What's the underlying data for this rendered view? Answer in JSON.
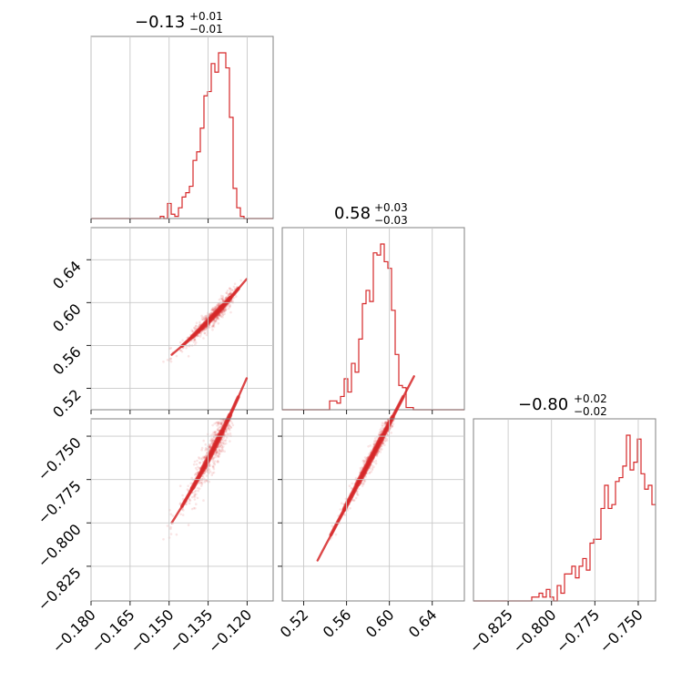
{
  "chart_data": {
    "type": "corner",
    "color": "#d62728",
    "parameters": [
      {
        "title": {
          "median": "−0.13",
          "plus": "+0.01",
          "minus": "−0.01"
        },
        "range": [
          -0.18,
          -0.11
        ],
        "ticks": [
          -0.18,
          -0.165,
          -0.15,
          -0.135,
          -0.12
        ],
        "tick_labels": [
          "−0.180",
          "−0.165",
          "−0.150",
          "−0.135",
          "−0.120"
        ],
        "median": -0.133,
        "sigma": 0.008,
        "skew": -3.5
      },
      {
        "title": {
          "median": "0.58",
          "plus": "+0.03",
          "minus": "−0.03"
        },
        "range": [
          0.5,
          0.67
        ],
        "ticks": [
          0.52,
          0.56,
          0.6,
          0.64
        ],
        "tick_labels": [
          "0.52",
          "0.56",
          "0.60",
          "0.64"
        ],
        "median": 0.583,
        "sigma": 0.025,
        "skew": 0
      },
      {
        "title": {
          "median": "−0.80",
          "plus": "+0.02",
          "minus": "−0.02"
        },
        "range": [
          -0.845,
          -0.74
        ],
        "ticks": [
          -0.825,
          -0.8,
          -0.775,
          -0.75
        ],
        "tick_labels": [
          "−0.825",
          "−0.800",
          "−0.775",
          "−0.750"
        ],
        "median": -0.799,
        "sigma": 0.016,
        "skew": 0.5
      }
    ],
    "curve": {
      "p1_from_p0": {
        "origin": -0.18,
        "a": 0.505,
        "b": 1.0,
        "c": 16.0
      },
      "p2_from_p1": {
        "origin": 0.52,
        "a": -0.837,
        "b": 1.18
      }
    },
    "contour_levels": [
      0.5,
      1.0,
      1.5,
      2.0
    ],
    "n_samples": 700
  }
}
